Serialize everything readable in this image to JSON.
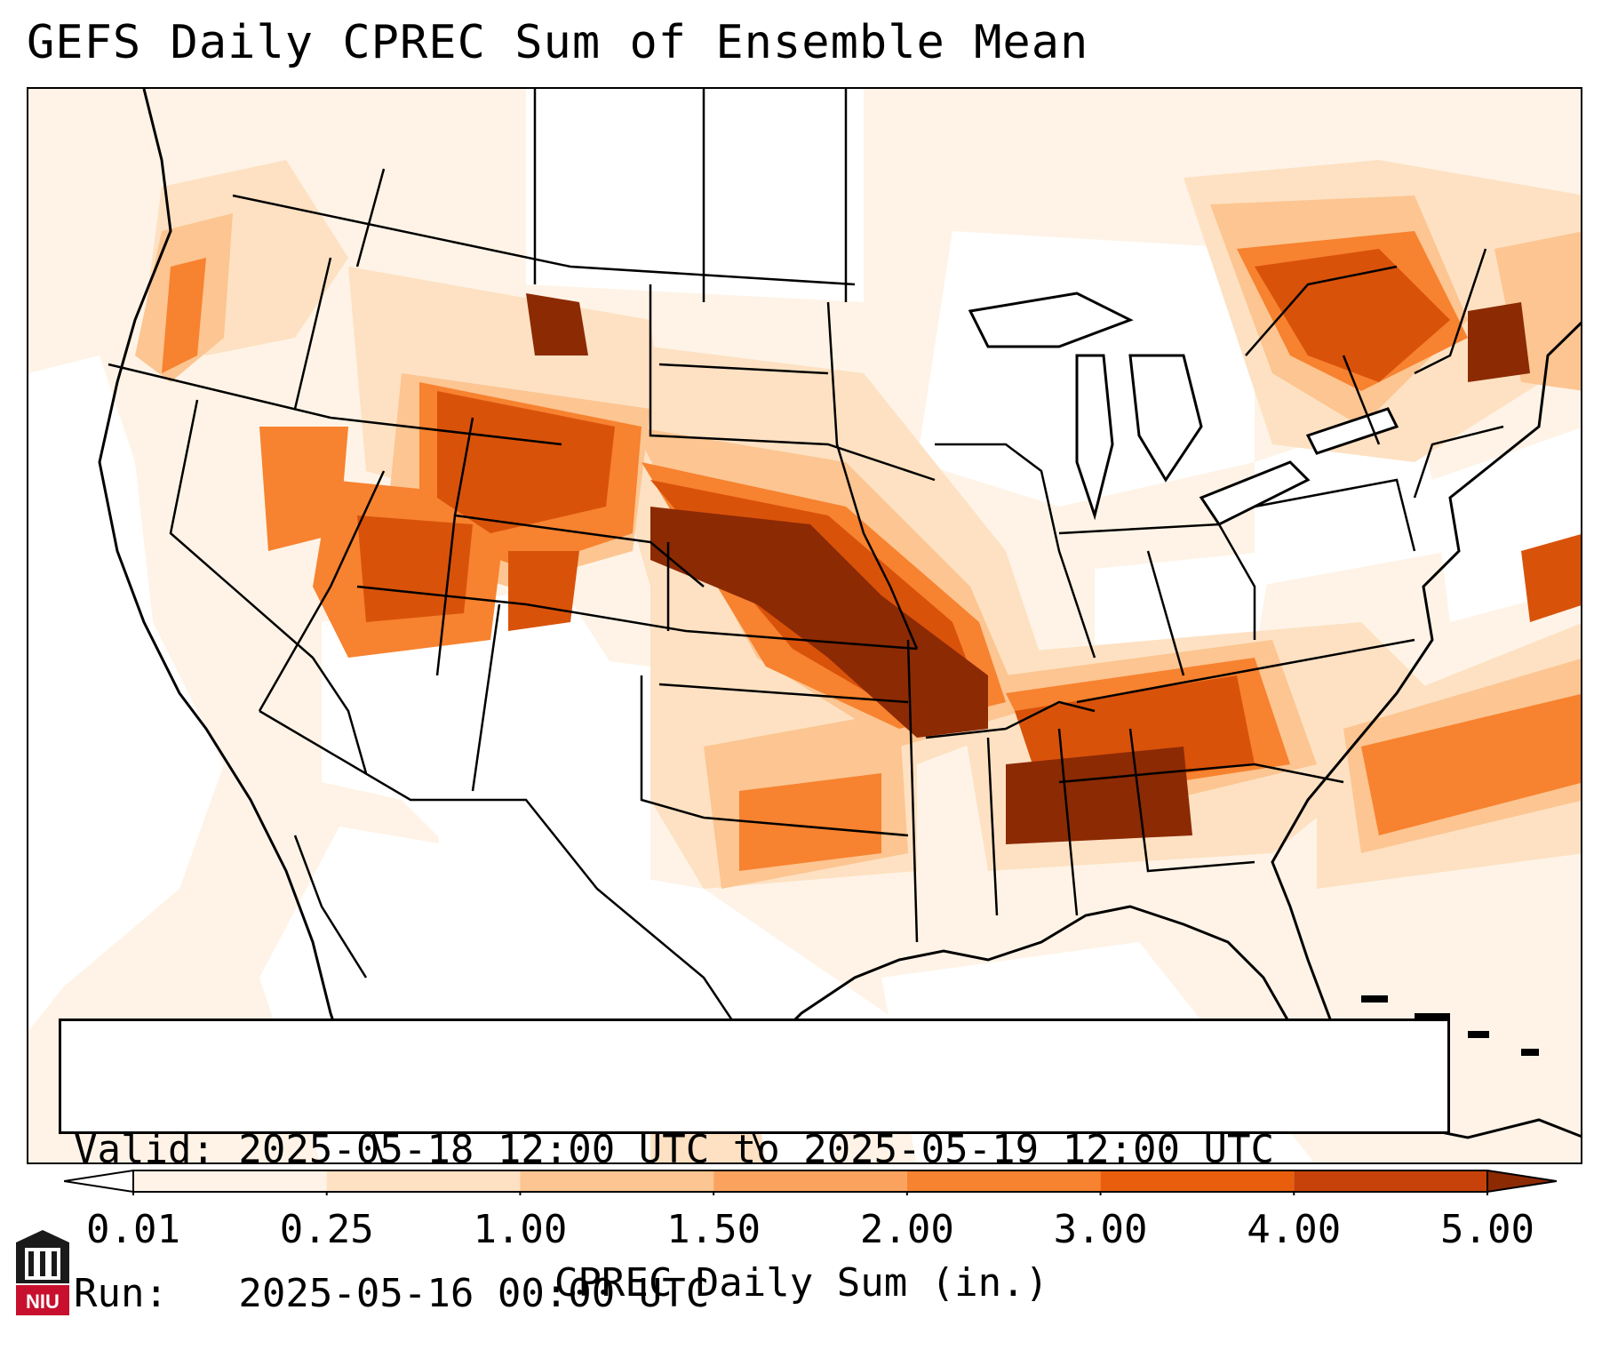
{
  "title": "GEFS Daily CPREC Sum of Ensemble Mean",
  "info": {
    "valid_line": "Valid: 2025-05-18 12:00 UTC to 2025-05-19 12:00 UTC",
    "run_line": "Run:   2025-05-16 00:00 UTC"
  },
  "colorbar": {
    "title": "CPREC Daily Sum (in.)",
    "ticks": [
      "0.01",
      "0.25",
      "1.00",
      "1.50",
      "2.00",
      "3.00",
      "4.00",
      "5.00"
    ],
    "colors": [
      "#fef3e6",
      "#fde1c2",
      "#fcc591",
      "#fba35e",
      "#f7822f",
      "#e95e0d",
      "#c6420a",
      "#8c2a04"
    ]
  },
  "logo": {
    "text": "NIU",
    "color": "#c8102e"
  },
  "map": {
    "region": "Contiguous United States",
    "precip_colors": {
      "trace": "#fef3e6",
      "light": "#fde1c2",
      "moderate": "#fcc591",
      "heavy": "#f7822f",
      "very_heavy": "#e95e0d",
      "extreme": "#8c2a04"
    }
  }
}
